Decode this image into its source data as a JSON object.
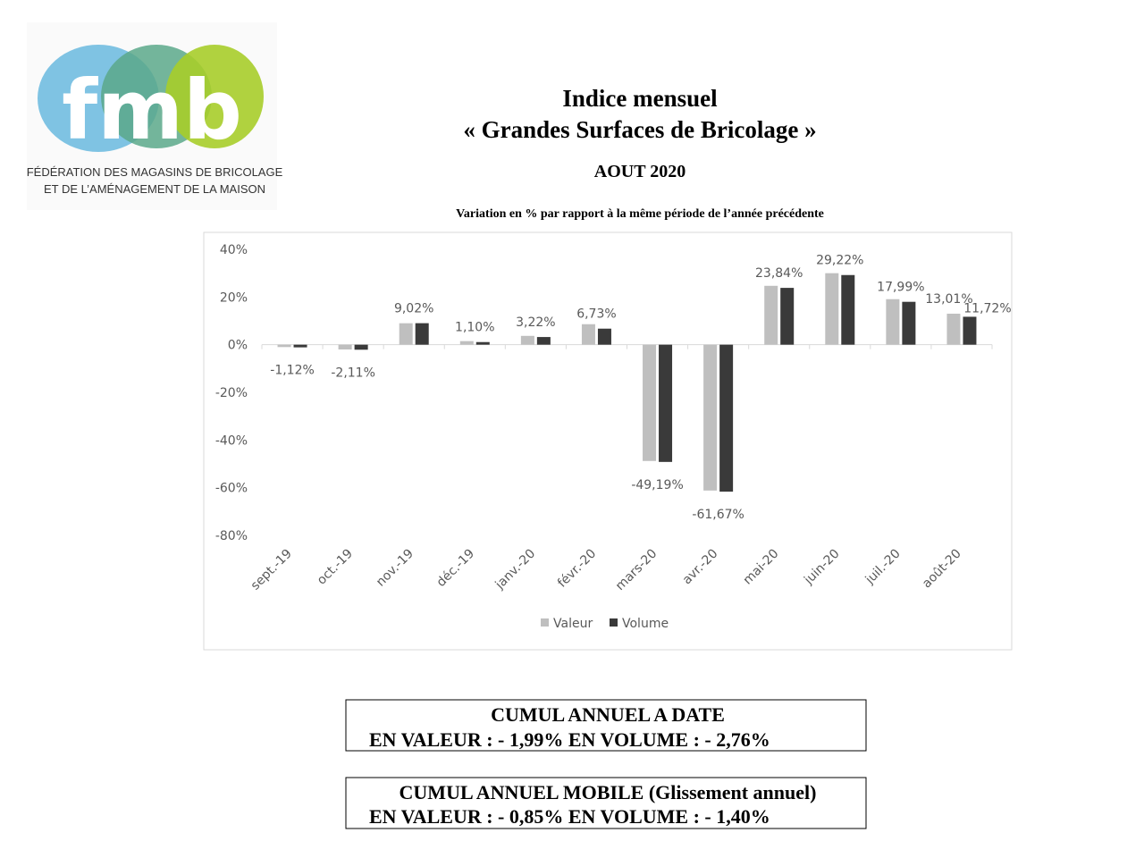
{
  "logo": {
    "mark": "fmb",
    "line1": "FÉDÉRATION DES MAGASINS DE BRICOLAGE",
    "line2": "ET DE L’AMÉNAGEMENT DE LA MAISON"
  },
  "header": {
    "title_line1": "Indice mensuel",
    "title_line2": "« Grandes Surfaces de Bricolage »",
    "period": "AOUT 2020"
  },
  "chart_data": {
    "type": "bar",
    "subtitle": "Variation en % par rapport à la même période de l’année précédente",
    "categories": [
      "sept.-19",
      "oct.-19",
      "nov.-19",
      "déc.-19",
      "janv.-20",
      "févr.-20",
      "mars-20",
      "avr.-20",
      "mai-20",
      "juin-20",
      "juil.-20",
      "août-20"
    ],
    "series": [
      {
        "name": "Valeur",
        "color": "#bfbfbf",
        "values": [
          -1,
          -2,
          9,
          1.5,
          3.7,
          8.6,
          -48.8,
          -61.2,
          24.7,
          30,
          19.1,
          13.01
        ],
        "value_labels": [
          null,
          null,
          null,
          null,
          null,
          null,
          null,
          null,
          null,
          null,
          null,
          "13,01%"
        ]
      },
      {
        "name": "Volume",
        "color": "#3a3a3a",
        "values": [
          -1.12,
          -2.11,
          9.02,
          1.1,
          3.22,
          6.73,
          -49.19,
          -61.67,
          23.84,
          29.22,
          17.99,
          11.72
        ],
        "value_labels": [
          "-1,12%",
          "-2,11%",
          "9,02%",
          "1,10%",
          "3,22%",
          "6,73%",
          "-49,19%",
          "-61,67%",
          "23,84%",
          "29,22%",
          "17,99%",
          "11,72%"
        ]
      }
    ],
    "ylim": [
      -80,
      40
    ],
    "yticks": [
      {
        "value": -80,
        "label": "-80%"
      },
      {
        "value": -60,
        "label": "-60%"
      },
      {
        "value": -40,
        "label": "-40%"
      },
      {
        "value": -20,
        "label": "-20%"
      },
      {
        "value": 0,
        "label": "0%"
      },
      {
        "value": 20,
        "label": "20%"
      },
      {
        "value": 40,
        "label": "40%"
      }
    ],
    "grid": false,
    "legend": "bottom"
  },
  "summary": [
    {
      "title": "CUMUL ANNUEL A DATE",
      "line": "EN VALEUR : - 1,99%   EN VOLUME : - 2,76%"
    },
    {
      "title": "CUMUL ANNUEL MOBILE (Glissement annuel)",
      "line": "EN VALEUR : - 0,85%   EN VOLUME : - 1,40%"
    }
  ]
}
